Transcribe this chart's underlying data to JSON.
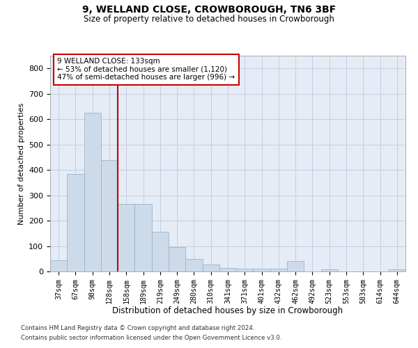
{
  "title1": "9, WELLAND CLOSE, CROWBOROUGH, TN6 3BF",
  "title2": "Size of property relative to detached houses in Crowborough",
  "xlabel": "Distribution of detached houses by size in Crowborough",
  "ylabel": "Number of detached properties",
  "categories": [
    "37sqm",
    "67sqm",
    "98sqm",
    "128sqm",
    "158sqm",
    "189sqm",
    "219sqm",
    "249sqm",
    "280sqm",
    "310sqm",
    "341sqm",
    "371sqm",
    "401sqm",
    "432sqm",
    "462sqm",
    "492sqm",
    "523sqm",
    "553sqm",
    "583sqm",
    "614sqm",
    "644sqm"
  ],
  "values": [
    45,
    385,
    625,
    440,
    265,
    265,
    155,
    95,
    50,
    28,
    15,
    10,
    10,
    10,
    40,
    0,
    8,
    0,
    0,
    0,
    8
  ],
  "bar_color": "#cddaea",
  "bar_edge_color": "#9ab5cc",
  "grid_color": "#c5cfe0",
  "background_color": "#e6ecf5",
  "vline_color": "#cc0000",
  "annotation_text": "9 WELLAND CLOSE: 133sqm\n← 53% of detached houses are smaller (1,120)\n47% of semi-detached houses are larger (996) →",
  "annotation_box_color": "#ffffff",
  "annotation_box_edge": "#cc0000",
  "ylim": [
    0,
    850
  ],
  "yticks": [
    0,
    100,
    200,
    300,
    400,
    500,
    600,
    700,
    800
  ],
  "footnote1": "Contains HM Land Registry data © Crown copyright and database right 2024.",
  "footnote2": "Contains public sector information licensed under the Open Government Licence v3.0."
}
